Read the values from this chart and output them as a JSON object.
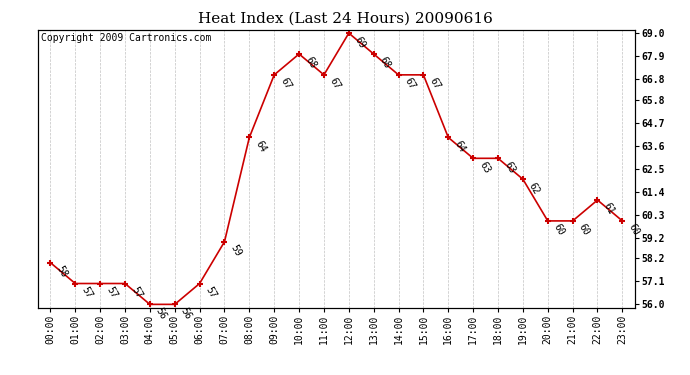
{
  "title": "Heat Index (Last 24 Hours) 20090616",
  "copyright": "Copyright 2009 Cartronics.com",
  "hours": [
    "00:00",
    "01:00",
    "02:00",
    "03:00",
    "04:00",
    "05:00",
    "06:00",
    "07:00",
    "08:00",
    "09:00",
    "10:00",
    "11:00",
    "12:00",
    "13:00",
    "14:00",
    "15:00",
    "16:00",
    "17:00",
    "18:00",
    "19:00",
    "20:00",
    "21:00",
    "22:00",
    "23:00"
  ],
  "values": [
    58,
    57,
    57,
    57,
    56,
    56,
    57,
    59,
    64,
    67,
    68,
    67,
    69,
    68,
    67,
    67,
    64,
    63,
    63,
    62,
    60,
    60,
    61,
    60
  ],
  "ylim_min": 56.0,
  "ylim_max": 69.0,
  "y_ticks": [
    56.0,
    57.1,
    58.2,
    59.2,
    60.3,
    61.4,
    62.5,
    63.6,
    64.7,
    65.8,
    66.8,
    67.9,
    69.0
  ],
  "line_color": "#cc0000",
  "marker": "+",
  "bg_color": "#ffffff",
  "grid_color": "#bbbbbb",
  "title_fontsize": 11,
  "copyright_fontsize": 7,
  "label_fontsize": 7,
  "tick_fontsize": 7
}
